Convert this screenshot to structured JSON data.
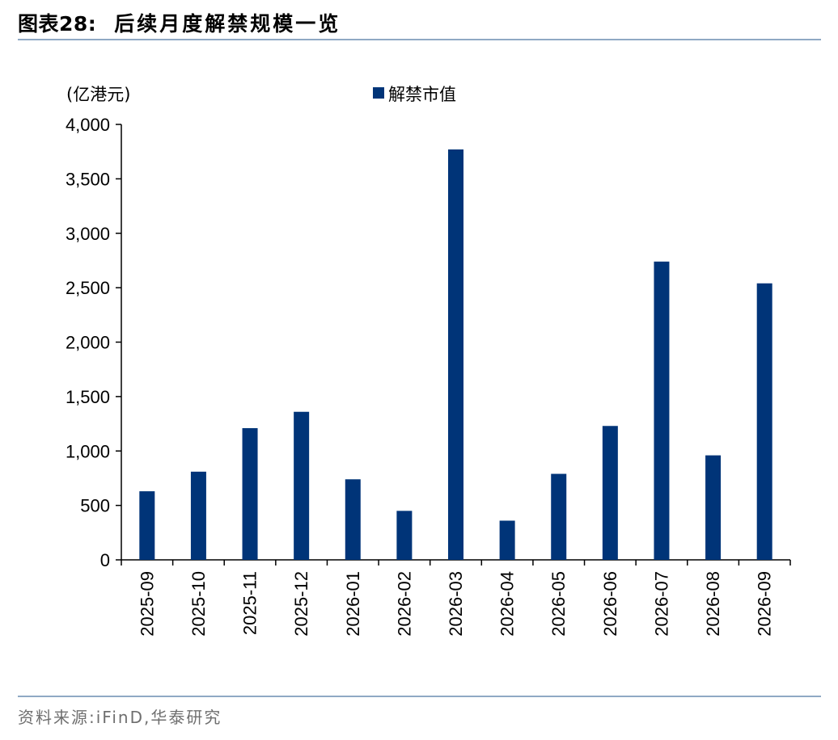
{
  "header": {
    "figure_label": "图表28:",
    "title": "后续月度解禁规模一览"
  },
  "footer": {
    "source_label": "资料来源:",
    "source_value": "iFinD,华泰研究"
  },
  "colors": {
    "bar": "#003478",
    "rule": "#8fa9c4",
    "axis": "#000000"
  },
  "chart_data": {
    "type": "bar",
    "ylabel": "(亿港元)",
    "legend": [
      "解禁市值"
    ],
    "legend_position": "top-center",
    "ylim": [
      0,
      4000
    ],
    "yticks": [
      0,
      500,
      1000,
      1500,
      2000,
      2500,
      3000,
      3500,
      4000
    ],
    "ytick_labels": [
      "0",
      "500",
      "1,000",
      "1,500",
      "2,000",
      "2,500",
      "3,000",
      "3,500",
      "4,000"
    ],
    "grid": false,
    "categories": [
      "2025-09",
      "2025-10",
      "2025-11",
      "2025-12",
      "2026-01",
      "2026-02",
      "2026-03",
      "2026-04",
      "2026-05",
      "2026-06",
      "2026-07",
      "2026-08",
      "2026-09"
    ],
    "series": [
      {
        "name": "解禁市值",
        "values": [
          630,
          810,
          1210,
          1360,
          740,
          450,
          3770,
          360,
          790,
          1230,
          2740,
          960,
          2540
        ]
      }
    ]
  }
}
